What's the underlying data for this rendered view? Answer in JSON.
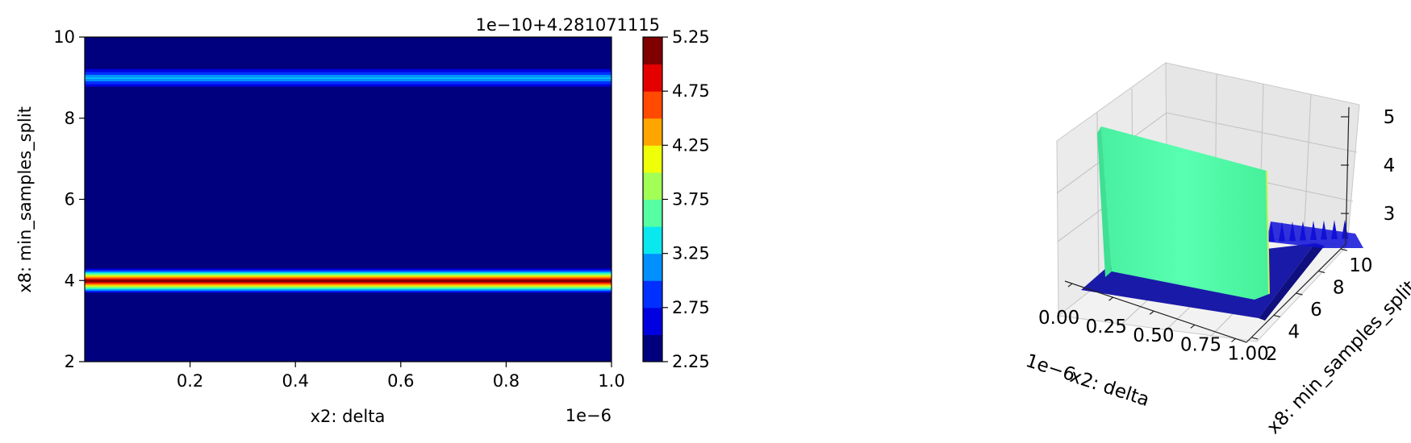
{
  "chart_data": [
    {
      "type": "heatmap",
      "subtype": "contourf",
      "xlabel": "x2: delta",
      "ylabel": "x8: min_samples_split",
      "x_offset_text": "1e−6",
      "xlim": [
        0.0,
        1.0
      ],
      "ylim": [
        2,
        10
      ],
      "xticks": [
        0.2,
        0.4,
        0.6,
        0.8,
        1.0
      ],
      "xtick_labels": [
        "0.2",
        "0.4",
        "0.6",
        "0.8",
        "1.0"
      ],
      "yticks": [
        2,
        4,
        6,
        8,
        10
      ],
      "ytick_labels": [
        "2",
        "4",
        "6",
        "8",
        "10"
      ],
      "colormap": "jet",
      "bands": [
        {
          "y_center": 4.0,
          "peak": 5.25,
          "half_width": 0.32
        },
        {
          "y_center": 9.0,
          "peak": 3.3,
          "half_width": 0.28
        }
      ],
      "background_level": 2.25,
      "colorbar": {
        "offset_text": "1e−10+4.281071115",
        "ticks": [
          2.25,
          2.75,
          3.25,
          3.75,
          4.25,
          4.75,
          5.25
        ],
        "tick_labels": [
          "2.25",
          "2.75",
          "3.25",
          "3.75",
          "4.25",
          "4.75",
          "5.25"
        ],
        "levels": [
          2.25,
          2.5,
          2.75,
          3.0,
          3.25,
          3.5,
          3.75,
          4.0,
          4.25,
          4.5,
          4.75,
          5.0,
          5.25
        ],
        "colors": [
          "#00007f",
          "#0000e0",
          "#0030ff",
          "#0090ff",
          "#0ae8ef",
          "#55ffa2",
          "#a2ff55",
          "#efff08",
          "#ffa500",
          "#ff4a00",
          "#e50000",
          "#800000"
        ]
      }
    },
    {
      "type": "surface3d",
      "colormap": "jet",
      "xlabel": "x2: delta",
      "ylabel": "x8: min_samples_split",
      "x_offset_text": "1e−6",
      "xticks": [
        0.0,
        0.25,
        0.5,
        0.75,
        1.0
      ],
      "xtick_labels": [
        "0.00",
        "0.25",
        "0.50",
        "0.75",
        "1.00"
      ],
      "yticks": [
        2,
        4,
        6,
        8,
        10
      ],
      "ytick_labels": [
        "2",
        "4",
        "6",
        "8",
        "10"
      ],
      "zticks": [
        3,
        4,
        5
      ],
      "ztick_labels": [
        "3",
        "4",
        "5"
      ],
      "surface_colors": {
        "ridge": "#52ffa6",
        "floor": "#1a1aa8",
        "spikes": "#1010d8"
      }
    }
  ]
}
